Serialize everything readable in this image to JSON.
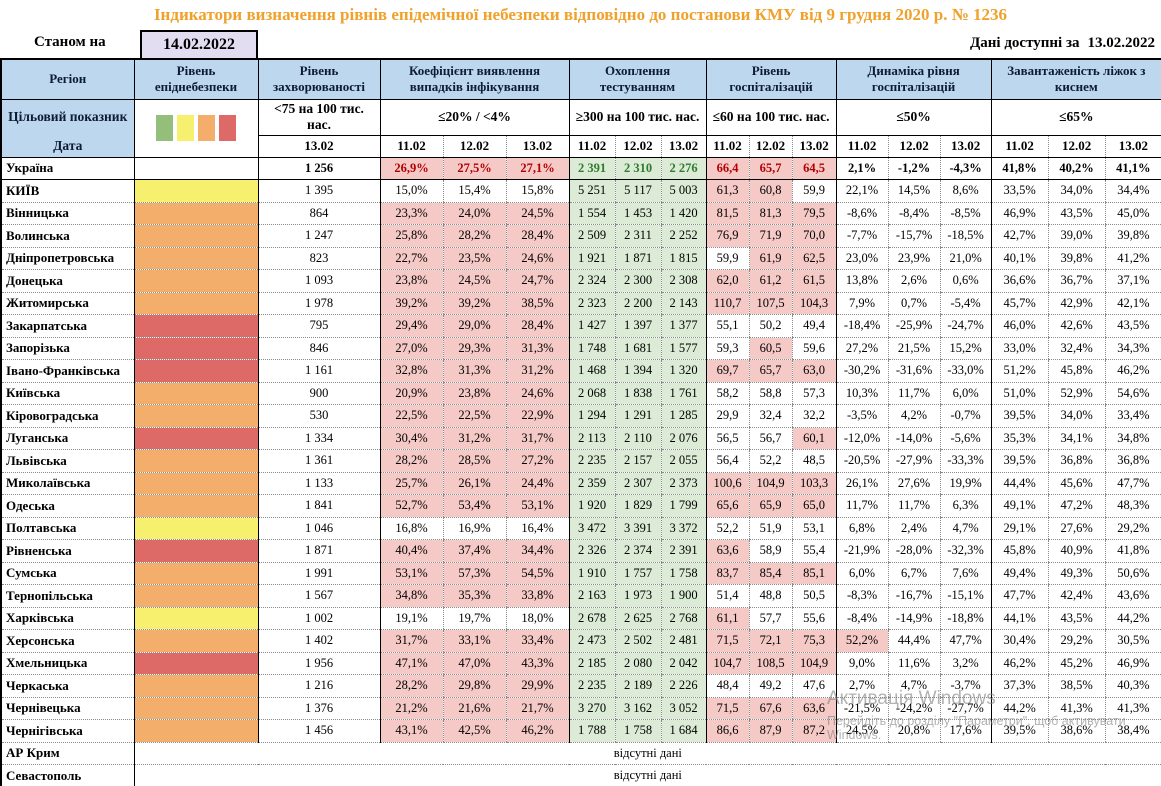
{
  "title": "Індикатори визначення рівнів епідемічної небезпеки відповідно до постанови КМУ від 9 грудня 2020 р. № 1236",
  "topbar": {
    "asof_label": "Станом на",
    "asof_date": "14.02.2022",
    "available_label": "Дані доступні за",
    "available_date": "13.02.2022"
  },
  "watermark": {
    "line1": "Активація Windows",
    "line2": "Перейдіть до розділу \"Параметри\", щоб активувати",
    "line3": "Windows."
  },
  "colors": {
    "title_orange": "#f0a12b",
    "header_blue": "#bdd7ee",
    "asof_lavender": "#e3ddf2",
    "pink_bg": "#f5c9c6",
    "pink_text": "#a33535",
    "green_bg": "#dcebd5",
    "green_text": "#4a8a42",
    "level_green": "#93bf7b",
    "level_yellow": "#f7f06f",
    "level_orange": "#f4ae6b",
    "level_red": "#dd6a66"
  },
  "table": {
    "header": {
      "region": "Регіон",
      "target_label": "Цільовий показник",
      "date_label": "Дата",
      "groups": [
        {
          "label": "Рівень епіднебезпеки",
          "target": "",
          "dates": []
        },
        {
          "label": "Рівень захворюваності",
          "target": "<75 на 100 тис. нас.",
          "dates": [
            "13.02"
          ]
        },
        {
          "label": "Коефіцієнт виявлення випадків інфікування",
          "target": "≤20% / <4%",
          "dates": [
            "11.02",
            "12.02",
            "13.02"
          ]
        },
        {
          "label": "Охоплення тестуванням",
          "target": "≥300 на 100 тис. нас.",
          "dates": [
            "11.02",
            "12.02",
            "13.02"
          ]
        },
        {
          "label": "Рівень госпіталізацій",
          "target": "≤60 на 100 тис. нас.",
          "dates": [
            "11.02",
            "12.02",
            "13.02"
          ]
        },
        {
          "label": "Динаміка рівня госпіталізацій",
          "target": "≤50%",
          "dates": [
            "11.02",
            "12.02",
            "13.02"
          ]
        },
        {
          "label": "Завантаженість ліжок з киснем",
          "target": "≤65%",
          "dates": [
            "11.02",
            "12.02",
            "13.02"
          ]
        }
      ]
    },
    "thresholds": {
      "coef": 20,
      "hosp": 60,
      "dyn": 50,
      "beds": 65
    },
    "rows": [
      {
        "region": "Україна",
        "bold": true,
        "level": "none",
        "incidence": "1 256",
        "coef": [
          "26,9%",
          "27,5%",
          "27,1%"
        ],
        "test": [
          "2 391",
          "2 310",
          "2 276"
        ],
        "hosp": [
          "66,4",
          "65,7",
          "64,5"
        ],
        "dyn": [
          "2,1%",
          "-1,2%",
          "-4,3%"
        ],
        "beds": [
          "41,8%",
          "40,2%",
          "41,1%"
        ]
      },
      {
        "region": "КИЇВ",
        "level": "yellow",
        "incidence": "1 395",
        "coef": [
          "15,0%",
          "15,4%",
          "15,8%"
        ],
        "test": [
          "5 251",
          "5 117",
          "5 003"
        ],
        "hosp": [
          "61,3",
          "60,8",
          "59,9"
        ],
        "dyn": [
          "22,1%",
          "14,5%",
          "8,6%"
        ],
        "beds": [
          "33,5%",
          "34,0%",
          "34,4%"
        ]
      },
      {
        "region": "Вінницька",
        "level": "orange",
        "incidence": "864",
        "coef": [
          "23,3%",
          "24,0%",
          "24,5%"
        ],
        "test": [
          "1 554",
          "1 453",
          "1 420"
        ],
        "hosp": [
          "81,5",
          "81,3",
          "79,5"
        ],
        "dyn": [
          "-8,6%",
          "-8,4%",
          "-8,5%"
        ],
        "beds": [
          "46,9%",
          "43,5%",
          "45,0%"
        ]
      },
      {
        "region": "Волинська",
        "level": "orange",
        "incidence": "1 247",
        "coef": [
          "25,8%",
          "28,2%",
          "28,4%"
        ],
        "test": [
          "2 509",
          "2 311",
          "2 252"
        ],
        "hosp": [
          "76,9",
          "71,9",
          "70,0"
        ],
        "dyn": [
          "-7,7%",
          "-15,7%",
          "-18,5%"
        ],
        "beds": [
          "42,7%",
          "39,0%",
          "39,8%"
        ]
      },
      {
        "region": "Дніпропетровська",
        "level": "orange",
        "incidence": "823",
        "coef": [
          "22,7%",
          "23,5%",
          "24,6%"
        ],
        "test": [
          "1 921",
          "1 871",
          "1 815"
        ],
        "hosp": [
          "59,9",
          "61,9",
          "62,5"
        ],
        "dyn": [
          "23,0%",
          "23,9%",
          "21,0%"
        ],
        "beds": [
          "40,1%",
          "39,8%",
          "41,2%"
        ]
      },
      {
        "region": "Донецька",
        "level": "orange",
        "incidence": "1 093",
        "coef": [
          "23,8%",
          "24,5%",
          "24,7%"
        ],
        "test": [
          "2 324",
          "2 300",
          "2 308"
        ],
        "hosp": [
          "62,0",
          "61,2",
          "61,5"
        ],
        "dyn": [
          "13,8%",
          "2,6%",
          "0,6%"
        ],
        "beds": [
          "36,6%",
          "36,7%",
          "37,1%"
        ]
      },
      {
        "region": "Житомирська",
        "level": "orange",
        "incidence": "1 978",
        "coef": [
          "39,2%",
          "39,2%",
          "38,5%"
        ],
        "test": [
          "2 323",
          "2 200",
          "2 143"
        ],
        "hosp": [
          "110,7",
          "107,5",
          "104,3"
        ],
        "dyn": [
          "7,9%",
          "0,7%",
          "-5,4%"
        ],
        "beds": [
          "45,7%",
          "42,9%",
          "42,1%"
        ]
      },
      {
        "region": "Закарпатська",
        "level": "red",
        "incidence": "795",
        "coef": [
          "29,4%",
          "29,0%",
          "28,4%"
        ],
        "test": [
          "1 427",
          "1 397",
          "1 377"
        ],
        "hosp": [
          "55,1",
          "50,2",
          "49,4"
        ],
        "dyn": [
          "-18,4%",
          "-25,9%",
          "-24,7%"
        ],
        "beds": [
          "46,0%",
          "42,6%",
          "43,5%"
        ]
      },
      {
        "region": "Запорізька",
        "level": "red",
        "incidence": "846",
        "coef": [
          "27,0%",
          "29,3%",
          "31,3%"
        ],
        "test": [
          "1 748",
          "1 681",
          "1 577"
        ],
        "hosp": [
          "59,3",
          "60,5",
          "59,6"
        ],
        "dyn": [
          "27,2%",
          "21,5%",
          "15,2%"
        ],
        "beds": [
          "33,0%",
          "32,4%",
          "34,3%"
        ]
      },
      {
        "region": "Івано-Франківська",
        "level": "red",
        "incidence": "1 161",
        "coef": [
          "32,8%",
          "31,3%",
          "31,2%"
        ],
        "test": [
          "1 468",
          "1 394",
          "1 320"
        ],
        "hosp": [
          "69,7",
          "65,7",
          "63,0"
        ],
        "dyn": [
          "-30,2%",
          "-31,6%",
          "-33,0%"
        ],
        "beds": [
          "51,2%",
          "45,8%",
          "46,2%"
        ]
      },
      {
        "region": "Київська",
        "level": "orange",
        "incidence": "900",
        "coef": [
          "20,9%",
          "23,8%",
          "24,6%"
        ],
        "test": [
          "2 068",
          "1 838",
          "1 761"
        ],
        "hosp": [
          "58,2",
          "58,8",
          "57,3"
        ],
        "dyn": [
          "10,3%",
          "11,7%",
          "6,0%"
        ],
        "beds": [
          "51,0%",
          "52,9%",
          "54,6%"
        ]
      },
      {
        "region": "Кіровоградська",
        "level": "orange",
        "incidence": "530",
        "coef": [
          "22,5%",
          "22,5%",
          "22,9%"
        ],
        "test": [
          "1 294",
          "1 291",
          "1 285"
        ],
        "hosp": [
          "29,9",
          "32,4",
          "32,2"
        ],
        "dyn": [
          "-3,5%",
          "4,2%",
          "-0,7%"
        ],
        "beds": [
          "39,5%",
          "34,0%",
          "33,4%"
        ]
      },
      {
        "region": "Луганська",
        "level": "red",
        "incidence": "1 334",
        "coef": [
          "30,4%",
          "31,2%",
          "31,7%"
        ],
        "test": [
          "2 113",
          "2 110",
          "2 076"
        ],
        "hosp": [
          "56,5",
          "56,7",
          "60,1"
        ],
        "dyn": [
          "-12,0%",
          "-14,0%",
          "-5,6%"
        ],
        "beds": [
          "35,3%",
          "34,1%",
          "34,8%"
        ]
      },
      {
        "region": "Львівська",
        "level": "orange",
        "incidence": "1 361",
        "coef": [
          "28,2%",
          "28,5%",
          "27,2%"
        ],
        "test": [
          "2 235",
          "2 157",
          "2 055"
        ],
        "hosp": [
          "56,4",
          "52,2",
          "48,5"
        ],
        "dyn": [
          "-20,5%",
          "-27,9%",
          "-33,3%"
        ],
        "beds": [
          "39,5%",
          "36,8%",
          "36,8%"
        ]
      },
      {
        "region": "Миколаївська",
        "level": "orange",
        "incidence": "1 133",
        "coef": [
          "25,7%",
          "26,1%",
          "24,4%"
        ],
        "test": [
          "2 359",
          "2 307",
          "2 373"
        ],
        "hosp": [
          "100,6",
          "104,9",
          "103,3"
        ],
        "dyn": [
          "26,1%",
          "27,6%",
          "19,9%"
        ],
        "beds": [
          "44,4%",
          "45,6%",
          "47,7%"
        ]
      },
      {
        "region": "Одеська",
        "level": "orange",
        "incidence": "1 841",
        "coef": [
          "52,7%",
          "53,4%",
          "53,1%"
        ],
        "test": [
          "1 920",
          "1 829",
          "1 799"
        ],
        "hosp": [
          "65,6",
          "65,9",
          "65,0"
        ],
        "dyn": [
          "11,7%",
          "11,7%",
          "6,3%"
        ],
        "beds": [
          "49,1%",
          "47,2%",
          "48,3%"
        ]
      },
      {
        "region": "Полтавська",
        "level": "yellow",
        "incidence": "1 046",
        "coef": [
          "16,8%",
          "16,9%",
          "16,4%"
        ],
        "test": [
          "3 472",
          "3 391",
          "3 372"
        ],
        "hosp": [
          "52,2",
          "51,9",
          "53,1"
        ],
        "dyn": [
          "6,8%",
          "2,4%",
          "4,7%"
        ],
        "beds": [
          "29,1%",
          "27,6%",
          "29,2%"
        ]
      },
      {
        "region": "Рівненська",
        "level": "red",
        "incidence": "1 871",
        "coef": [
          "40,4%",
          "37,4%",
          "34,4%"
        ],
        "test": [
          "2 326",
          "2 374",
          "2 391"
        ],
        "hosp": [
          "63,6",
          "58,9",
          "55,4"
        ],
        "dyn": [
          "-21,9%",
          "-28,0%",
          "-32,3%"
        ],
        "beds": [
          "45,8%",
          "40,9%",
          "41,8%"
        ]
      },
      {
        "region": "Сумська",
        "level": "orange",
        "incidence": "1 991",
        "coef": [
          "53,1%",
          "57,3%",
          "54,5%"
        ],
        "test": [
          "1 910",
          "1 757",
          "1 758"
        ],
        "hosp": [
          "83,7",
          "85,4",
          "85,1"
        ],
        "dyn": [
          "6,0%",
          "6,7%",
          "7,6%"
        ],
        "beds": [
          "49,4%",
          "49,3%",
          "50,6%"
        ]
      },
      {
        "region": "Тернопільська",
        "level": "orange",
        "incidence": "1 567",
        "coef": [
          "34,8%",
          "35,3%",
          "33,8%"
        ],
        "test": [
          "2 163",
          "1 973",
          "1 900"
        ],
        "hosp": [
          "51,4",
          "48,8",
          "50,5"
        ],
        "dyn": [
          "-8,3%",
          "-16,7%",
          "-15,1%"
        ],
        "beds": [
          "47,7%",
          "42,4%",
          "43,6%"
        ]
      },
      {
        "region": "Харківська",
        "level": "yellow",
        "incidence": "1 002",
        "coef": [
          "19,1%",
          "19,7%",
          "18,0%"
        ],
        "test": [
          "2 678",
          "2 625",
          "2 768"
        ],
        "hosp": [
          "61,1",
          "57,7",
          "55,6"
        ],
        "dyn": [
          "-8,4%",
          "-14,9%",
          "-18,8%"
        ],
        "beds": [
          "44,1%",
          "43,5%",
          "44,2%"
        ]
      },
      {
        "region": "Херсонська",
        "level": "orange",
        "incidence": "1 402",
        "coef": [
          "31,7%",
          "33,1%",
          "33,4%"
        ],
        "test": [
          "2 473",
          "2 502",
          "2 481"
        ],
        "hosp": [
          "71,5",
          "72,1",
          "75,3"
        ],
        "dyn": [
          "52,2%",
          "44,4%",
          "47,7%"
        ],
        "beds": [
          "30,4%",
          "29,2%",
          "30,5%"
        ]
      },
      {
        "region": "Хмельницька",
        "level": "red",
        "incidence": "1 956",
        "coef": [
          "47,1%",
          "47,0%",
          "43,3%"
        ],
        "test": [
          "2 185",
          "2 080",
          "2 042"
        ],
        "hosp": [
          "104,7",
          "108,5",
          "104,9"
        ],
        "dyn": [
          "9,0%",
          "11,6%",
          "3,2%"
        ],
        "beds": [
          "46,2%",
          "45,2%",
          "46,9%"
        ]
      },
      {
        "region": "Черкаська",
        "level": "orange",
        "incidence": "1 216",
        "coef": [
          "28,2%",
          "29,8%",
          "29,9%"
        ],
        "test": [
          "2 235",
          "2 189",
          "2 226"
        ],
        "hosp": [
          "48,4",
          "49,2",
          "47,6"
        ],
        "dyn": [
          "2,7%",
          "4,7%",
          "-3,7%"
        ],
        "beds": [
          "37,3%",
          "38,5%",
          "40,3%"
        ]
      },
      {
        "region": "Чернівецька",
        "level": "orange",
        "incidence": "1 376",
        "coef": [
          "21,2%",
          "21,6%",
          "21,7%"
        ],
        "test": [
          "3 270",
          "3 162",
          "3 052"
        ],
        "hosp": [
          "71,5",
          "67,6",
          "63,6"
        ],
        "dyn": [
          "-21,5%",
          "-24,2%",
          "-27,7%"
        ],
        "beds": [
          "44,2%",
          "41,3%",
          "41,3%"
        ]
      },
      {
        "region": "Чернігівська",
        "level": "orange",
        "incidence": "1 456",
        "coef": [
          "43,1%",
          "42,5%",
          "46,2%"
        ],
        "test": [
          "1 788",
          "1 758",
          "1 684"
        ],
        "hosp": [
          "86,6",
          "87,9",
          "87,2"
        ],
        "dyn": [
          "24,5%",
          "20,8%",
          "17,6%"
        ],
        "beds": [
          "39,5%",
          "38,6%",
          "38,4%"
        ]
      },
      {
        "region": "АР Крим",
        "nodata": "відсутні дані"
      },
      {
        "region": "Севастополь",
        "nodata": "відсутні дані"
      }
    ]
  }
}
